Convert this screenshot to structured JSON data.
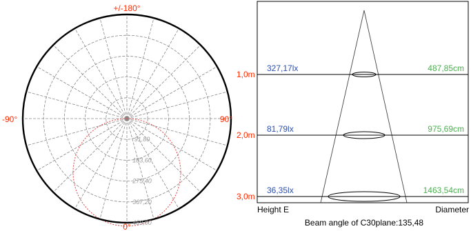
{
  "polar": {
    "angle_labels": {
      "top": "+/-180°",
      "left": "-90°",
      "right": "90°",
      "bottom": "0°"
    },
    "radial_labels": [
      "91,80",
      "183,60",
      "275,40",
      "367,20",
      "459,00"
    ],
    "radial_max": 459,
    "curve_color": "#e05050",
    "label_color": "#ff2a00"
  },
  "illuminance": {
    "rows": [
      {
        "height": "1,0m",
        "lux": "327,17lx",
        "diameter": "487,85cm",
        "height_value": 1.0,
        "diameter_value_cm": 487.85
      },
      {
        "height": "2,0m",
        "lux": "81,79lx",
        "diameter": "975,69cm",
        "height_value": 2.0,
        "diameter_value_cm": 975.69
      },
      {
        "height": "3,0m",
        "lux": "36,35lx",
        "diameter": "1463,54cm",
        "height_value": 3.0,
        "diameter_value_cm": 1463.54
      }
    ],
    "footer_left": "Height E",
    "footer_right": "Diameter",
    "caption": "Beam angle of C30plane:135,48",
    "colors": {
      "height": "#ff2a00",
      "lux": "#2b4fb0",
      "diameter": "#4caf50"
    }
  }
}
